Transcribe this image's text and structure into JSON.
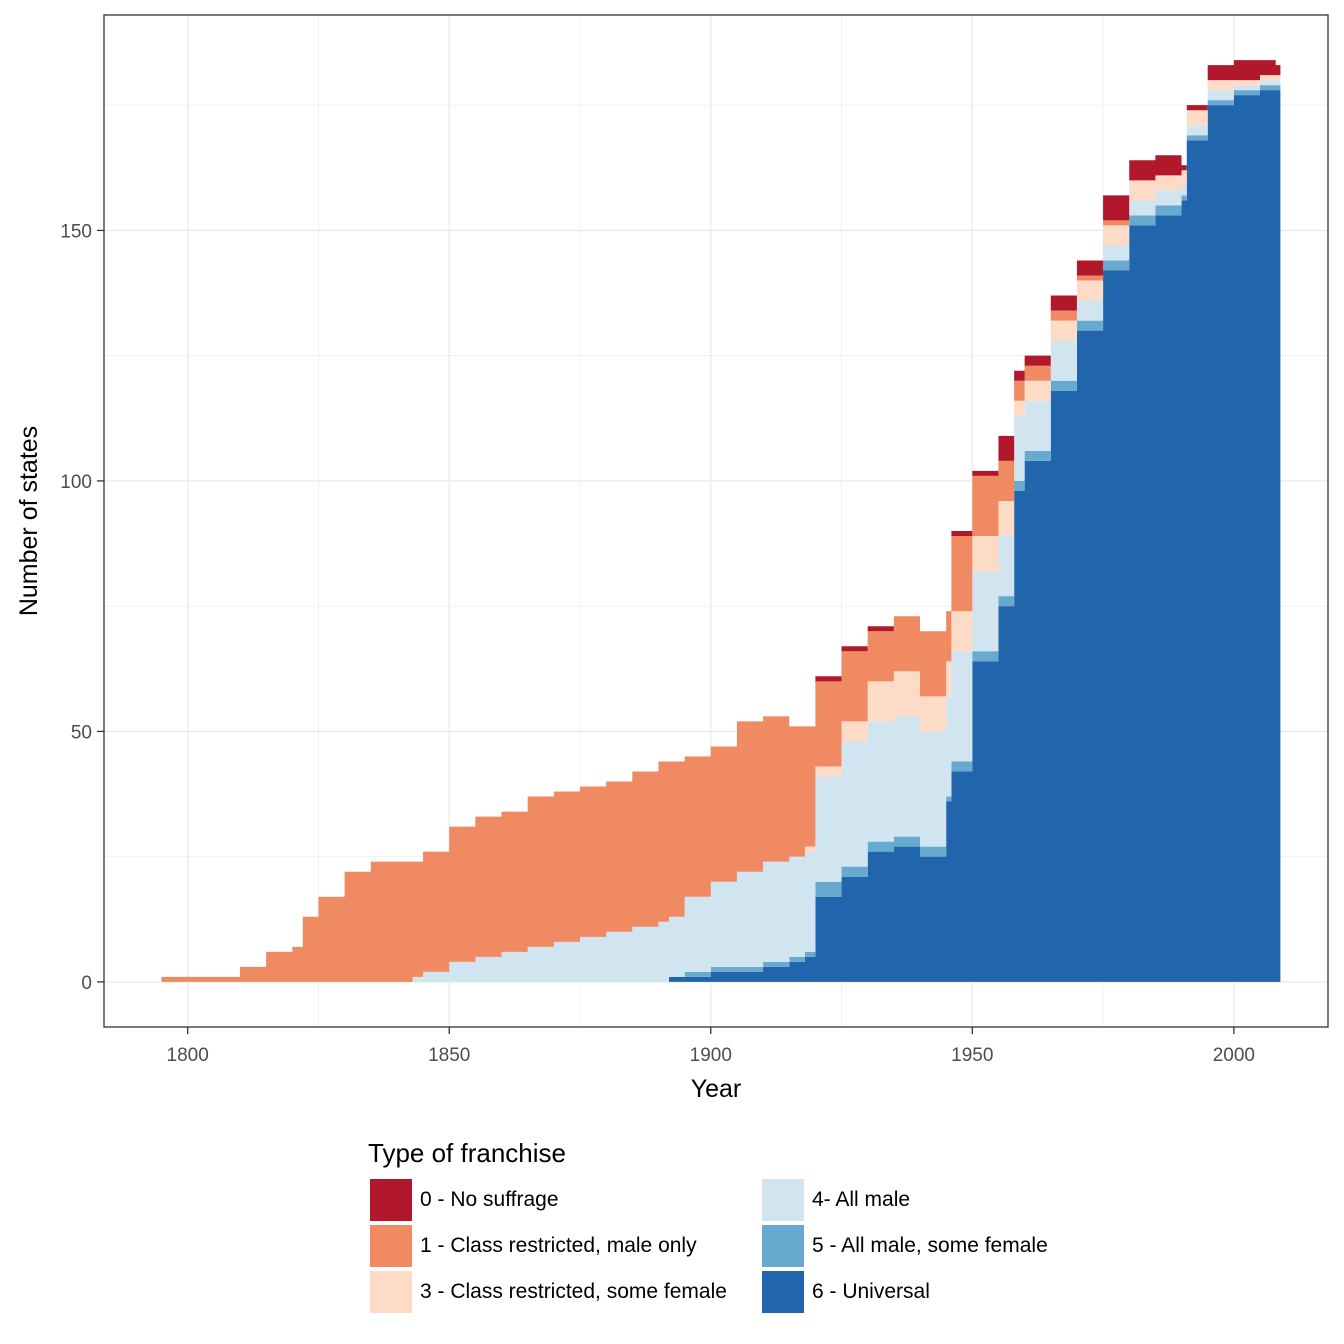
{
  "chart_data": {
    "type": "area",
    "stacked": true,
    "step": true,
    "xlabel": "Year",
    "ylabel": "Number of states",
    "xlim": [
      1784,
      2018
    ],
    "ylim": [
      -9,
      193
    ],
    "xticks": [
      1800,
      1850,
      1900,
      1950,
      2000
    ],
    "yticks": [
      0,
      50,
      100,
      150
    ],
    "grid": true,
    "legend": {
      "title": "Type of franchise",
      "position": "bottom",
      "columns": 2
    },
    "x": [
      1795,
      1805,
      1810,
      1815,
      1820,
      1822,
      1825,
      1830,
      1835,
      1840,
      1843,
      1845,
      1850,
      1855,
      1860,
      1865,
      1870,
      1875,
      1880,
      1885,
      1890,
      1892,
      1895,
      1900,
      1905,
      1910,
      1915,
      1918,
      1920,
      1925,
      1930,
      1935,
      1940,
      1945,
      1946,
      1950,
      1955,
      1958,
      1960,
      1965,
      1970,
      1975,
      1980,
      1985,
      1990,
      1991,
      1995,
      2000,
      2005,
      2008
    ],
    "series": [
      {
        "name": "6 - Universal",
        "color": "#2166ac",
        "values": [
          0,
          0,
          0,
          0,
          0,
          0,
          0,
          0,
          0,
          0,
          0,
          0,
          0,
          0,
          0,
          0,
          0,
          0,
          0,
          0,
          0,
          1,
          1,
          2,
          2,
          3,
          4,
          5,
          17,
          21,
          26,
          27,
          25,
          36,
          42,
          64,
          75,
          98,
          104,
          118,
          130,
          142,
          151,
          153,
          156,
          168,
          175,
          177,
          178,
          178
        ]
      },
      {
        "name": "5 - All male, some female",
        "color": "#67a9cf",
        "values": [
          0,
          0,
          0,
          0,
          0,
          0,
          0,
          0,
          0,
          0,
          0,
          0,
          0,
          0,
          0,
          0,
          0,
          0,
          0,
          0,
          0,
          0,
          1,
          1,
          1,
          1,
          1,
          1,
          3,
          2,
          2,
          2,
          2,
          1,
          2,
          2,
          2,
          2,
          2,
          2,
          2,
          2,
          2,
          2,
          1,
          1,
          1,
          1,
          1,
          1
        ]
      },
      {
        "name": "4- All male",
        "color": "#d1e5f0",
        "values": [
          0,
          0,
          0,
          0,
          0,
          0,
          0,
          0,
          0,
          0,
          1,
          2,
          4,
          5,
          6,
          7,
          8,
          9,
          10,
          11,
          12,
          12,
          15,
          17,
          19,
          20,
          20,
          20,
          21,
          25,
          24,
          24,
          23,
          20,
          22,
          16,
          12,
          13,
          10,
          8,
          4,
          3,
          3,
          3,
          2,
          2,
          2,
          1,
          1,
          1
        ]
      },
      {
        "name": "3 - Class restricted, some female",
        "color": "#fddbc7",
        "values": [
          0,
          0,
          0,
          0,
          0,
          0,
          0,
          0,
          0,
          0,
          0,
          0,
          0,
          0,
          0,
          0,
          0,
          0,
          0,
          0,
          0,
          0,
          0,
          0,
          0,
          0,
          0,
          1,
          2,
          4,
          8,
          9,
          7,
          7,
          8,
          7,
          7,
          3,
          4,
          4,
          4,
          4,
          4,
          3,
          3,
          3,
          2,
          1,
          1,
          1
        ]
      },
      {
        "name": "1 - Class restricted, male only",
        "color": "#ef8a62",
        "values": [
          1,
          1,
          3,
          6,
          7,
          13,
          17,
          22,
          24,
          24,
          23,
          24,
          27,
          28,
          28,
          30,
          30,
          30,
          30,
          31,
          32,
          31,
          28,
          27,
          30,
          29,
          26,
          24,
          17,
          14,
          10,
          11,
          13,
          10,
          15,
          12,
          8,
          4,
          3,
          2,
          1,
          1,
          0,
          0,
          0,
          0,
          0,
          0,
          0,
          0
        ]
      },
      {
        "name": "0 - No suffrage",
        "color": "#b2182b",
        "values": [
          0,
          0,
          0,
          0,
          0,
          0,
          0,
          0,
          0,
          0,
          0,
          0,
          0,
          0,
          0,
          0,
          0,
          0,
          0,
          0,
          0,
          0,
          0,
          0,
          0,
          0,
          0,
          0,
          1,
          1,
          1,
          0,
          0,
          0,
          1,
          1,
          5,
          2,
          2,
          3,
          3,
          5,
          4,
          4,
          1,
          1,
          3,
          4,
          3,
          2
        ]
      }
    ]
  },
  "legend_entries": [
    {
      "label": "0 - No suffrage",
      "color": "#b2182b"
    },
    {
      "label": "1 - Class restricted, male only",
      "color": "#ef8a62"
    },
    {
      "label": "3 - Class restricted, some female",
      "color": "#fddbc7"
    },
    {
      "label": "4- All male",
      "color": "#d1e5f0"
    },
    {
      "label": "5 - All male, some female",
      "color": "#67a9cf"
    },
    {
      "label": "6 - Universal",
      "color": "#2166ac"
    }
  ]
}
